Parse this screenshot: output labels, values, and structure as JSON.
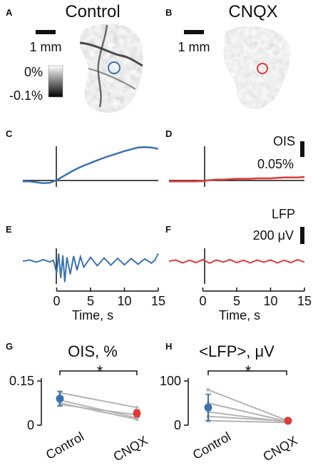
{
  "colors": {
    "control": "#3b73b0",
    "cnqx": "#e03a3a",
    "grey_line": "#b5b5b5",
    "ink": "#111111"
  },
  "panels": {
    "a": {
      "letter": "A",
      "title": "Control",
      "scale_text": "1 mm",
      "colorbar_top": "0%",
      "colorbar_bottom": "-0.1%"
    },
    "b": {
      "letter": "B",
      "title": "CNQX",
      "scale_text": "1 mm"
    },
    "c": {
      "letter": "C"
    },
    "d": {
      "letter": "D",
      "scale_label_1": "OIS",
      "scale_label_2": "0.05%"
    },
    "e": {
      "letter": "E"
    },
    "f": {
      "letter": "F",
      "scale_label_1": "LFP",
      "scale_label_2": "200 μV"
    },
    "g": {
      "letter": "G",
      "title": "OIS, %",
      "ytick_top": "0.15",
      "ytick_bottom": "0",
      "xcat_1": "Control",
      "xcat_2": "CNQX",
      "sig": "*"
    },
    "h": {
      "letter": "H",
      "title": "<LFP>, μV",
      "ytick_top": "100",
      "ytick_bottom": "0",
      "xcat_1": "Control",
      "xcat_2": "CNQX",
      "sig": "*"
    }
  },
  "time_axis": {
    "ticks": [
      "0",
      "5",
      "10",
      "15"
    ],
    "label": "Time, s"
  },
  "chart_data": [
    {
      "id": "C",
      "type": "line",
      "series_color": "control",
      "x": [
        -5,
        -4,
        -3,
        -2,
        -1,
        0,
        1,
        2,
        3,
        4,
        5,
        6,
        7,
        8,
        9,
        10,
        11,
        12,
        13,
        14,
        15
      ],
      "y": [
        0.0,
        0.0,
        -0.002,
        -0.004,
        -0.003,
        0.003,
        0.012,
        0.021,
        0.029,
        0.036,
        0.042,
        0.048,
        0.054,
        0.059,
        0.064,
        0.069,
        0.073,
        0.077,
        0.078,
        0.077,
        0.074
      ],
      "xlim": [
        -5,
        15
      ],
      "ylim": [
        -0.006,
        0.08
      ],
      "units": "%"
    },
    {
      "id": "D",
      "type": "line",
      "series_color": "cnqx",
      "x": [
        -5,
        -4,
        -3,
        -2,
        -1,
        0,
        1,
        2,
        3,
        4,
        5,
        6,
        7,
        8,
        9,
        10,
        11,
        12,
        13,
        14,
        15
      ],
      "y": [
        0.0,
        0.0,
        0.0,
        0.0,
        0.0,
        0.001,
        0.003,
        0.004,
        0.004,
        0.005,
        0.006,
        0.006,
        0.006,
        0.007,
        0.007,
        0.007,
        0.008,
        0.009,
        0.009,
        0.009,
        0.01
      ],
      "xlim": [
        -5,
        15
      ],
      "ylim": [
        -0.006,
        0.08
      ],
      "units": "%"
    },
    {
      "id": "E",
      "type": "line",
      "series_color": "control",
      "x": [
        -5,
        -4,
        -3,
        -2,
        -1,
        -0.5,
        0,
        0.3,
        0.6,
        0.9,
        1.2,
        1.5,
        2,
        2.5,
        3,
        3.5,
        4,
        5,
        6,
        7,
        8,
        9,
        10,
        11,
        12,
        13,
        14,
        14.5,
        15
      ],
      "y": [
        0,
        20,
        -15,
        25,
        -10,
        15,
        -180,
        120,
        -260,
        90,
        -320,
        60,
        -200,
        80,
        -140,
        70,
        -90,
        60,
        -70,
        50,
        -60,
        45,
        -55,
        40,
        -45,
        35,
        -30,
        20,
        120
      ],
      "xlim": [
        -5,
        15
      ],
      "ylim": [
        -350,
        200
      ],
      "units": "μV"
    },
    {
      "id": "F",
      "type": "line",
      "series_color": "cnqx",
      "x": [
        -5,
        -4,
        -3,
        -2,
        -1,
        0,
        1,
        2,
        3,
        4,
        5,
        6,
        7,
        8,
        9,
        10,
        11,
        12,
        13,
        14,
        15
      ],
      "y": [
        0,
        20,
        -25,
        15,
        -20,
        25,
        -30,
        20,
        -15,
        25,
        -20,
        15,
        -25,
        20,
        -15,
        20,
        -25,
        15,
        -20,
        25,
        -15
      ],
      "xlim": [
        -5,
        15
      ],
      "ylim": [
        -350,
        200
      ],
      "units": "μV"
    },
    {
      "id": "G",
      "type": "scatter",
      "ylim": [
        0,
        0.15
      ],
      "categories": [
        "Control",
        "CNQX"
      ],
      "mean": [
        0.09,
        0.04
      ],
      "sem": [
        0.025,
        0.012
      ],
      "pairs": [
        [
          0.11,
          0.06
        ],
        [
          0.085,
          0.025
        ],
        [
          0.075,
          0.02
        ],
        [
          0.07,
          0.035
        ]
      ]
    },
    {
      "id": "H",
      "type": "scatter",
      "ylim": [
        0,
        100
      ],
      "categories": [
        "Control",
        "CNQX"
      ],
      "mean": [
        40,
        10
      ],
      "sem": [
        30,
        3
      ],
      "pairs": [
        [
          80,
          10
        ],
        [
          50,
          8
        ],
        [
          30,
          7
        ],
        [
          20,
          9
        ],
        [
          10,
          6
        ]
      ]
    }
  ]
}
